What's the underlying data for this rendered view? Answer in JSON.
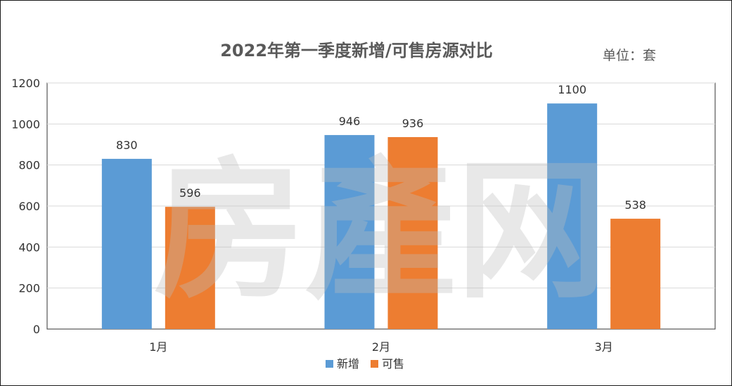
{
  "chart_data": {
    "type": "bar",
    "title": "2022年第一季度新增/可售房源对比",
    "unit_label": "单位：套",
    "categories": [
      "1月",
      "2月",
      "3月"
    ],
    "series": [
      {
        "name": "新增",
        "values": [
          830,
          946,
          1100
        ],
        "color": "#5b9bd5"
      },
      {
        "name": "可售",
        "values": [
          596,
          936,
          538
        ],
        "color": "#ed7d31"
      }
    ],
    "ylim": [
      0,
      1200
    ],
    "yticks": [
      0,
      200,
      400,
      600,
      800,
      1000,
      1200
    ],
    "grid": true,
    "legend_position": "bottom",
    "xlabel": "",
    "ylabel": ""
  },
  "watermark": {
    "text": "房產网"
  }
}
